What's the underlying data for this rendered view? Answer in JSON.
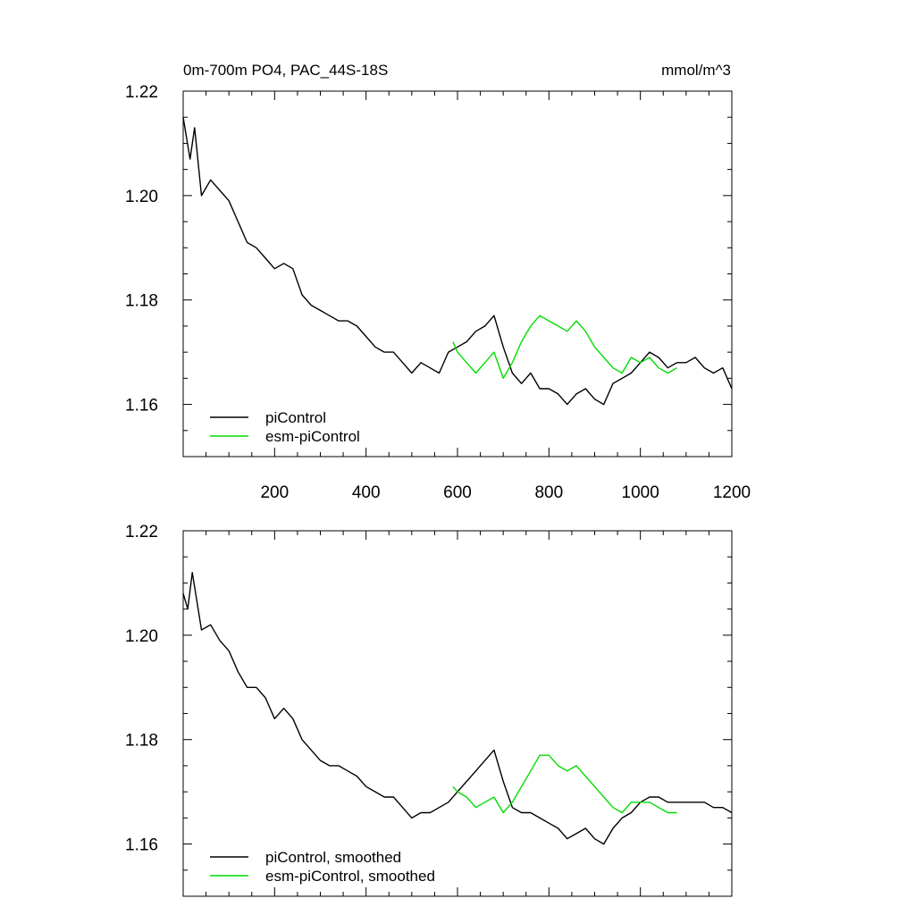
{
  "figure": {
    "title": "0m-700m PO4, PAC_44S-18S",
    "units": "mmol/m^3"
  },
  "chart_data": [
    {
      "type": "line",
      "panel": "top",
      "title": "0m-700m PO4, PAC_44S-18S",
      "units_label": "mmol/m^3",
      "xlabel": "",
      "ylabel": "",
      "xlim": [
        0,
        1200
      ],
      "ylim": [
        1.15,
        1.22
      ],
      "xticks": [
        200,
        400,
        600,
        800,
        1000,
        1200
      ],
      "xtick_labels": [
        "200",
        "400",
        "600",
        "800",
        "1000",
        "1200"
      ],
      "yticks": [
        1.16,
        1.18,
        1.2,
        1.22
      ],
      "ytick_labels": [
        "1.16",
        "1.18",
        "1.20",
        "1.22"
      ],
      "grid": false,
      "legend_position": "bottom-left",
      "series": [
        {
          "name": "piControl",
          "color": "#000000",
          "x": [
            0,
            15,
            25,
            40,
            60,
            80,
            100,
            120,
            140,
            160,
            180,
            200,
            220,
            240,
            260,
            280,
            300,
            320,
            340,
            360,
            380,
            400,
            420,
            440,
            460,
            480,
            500,
            520,
            540,
            560,
            580,
            600,
            620,
            640,
            660,
            680,
            700,
            720,
            740,
            760,
            780,
            800,
            820,
            840,
            860,
            880,
            900,
            920,
            940,
            960,
            980,
            1000,
            1020,
            1040,
            1060,
            1080,
            1100,
            1120,
            1140,
            1160,
            1180,
            1200
          ],
          "y": [
            1.215,
            1.207,
            1.213,
            1.2,
            1.203,
            1.201,
            1.199,
            1.195,
            1.191,
            1.19,
            1.188,
            1.186,
            1.187,
            1.186,
            1.181,
            1.179,
            1.178,
            1.177,
            1.176,
            1.176,
            1.175,
            1.173,
            1.171,
            1.17,
            1.17,
            1.168,
            1.166,
            1.168,
            1.167,
            1.166,
            1.17,
            1.171,
            1.172,
            1.174,
            1.175,
            1.177,
            1.171,
            1.166,
            1.164,
            1.166,
            1.163,
            1.163,
            1.162,
            1.16,
            1.162,
            1.163,
            1.161,
            1.16,
            1.164,
            1.165,
            1.166,
            1.168,
            1.17,
            1.169,
            1.167,
            1.168,
            1.168,
            1.169,
            1.167,
            1.166,
            1.167,
            1.163
          ]
        },
        {
          "name": "esm-piControl",
          "color": "#00dd00",
          "x": [
            590,
            600,
            620,
            640,
            660,
            680,
            700,
            720,
            740,
            760,
            780,
            800,
            820,
            840,
            860,
            880,
            900,
            920,
            940,
            960,
            980,
            1000,
            1020,
            1040,
            1060,
            1080
          ],
          "y": [
            1.172,
            1.17,
            1.168,
            1.166,
            1.168,
            1.17,
            1.165,
            1.168,
            1.172,
            1.175,
            1.177,
            1.176,
            1.175,
            1.174,
            1.176,
            1.174,
            1.171,
            1.169,
            1.167,
            1.166,
            1.169,
            1.168,
            1.169,
            1.167,
            1.166,
            1.167
          ]
        }
      ]
    },
    {
      "type": "line",
      "panel": "bottom",
      "title": "",
      "xlabel": "",
      "ylabel": "",
      "xlim": [
        0,
        1200
      ],
      "ylim": [
        1.15,
        1.22
      ],
      "xticks": [
        200,
        400,
        600,
        800,
        1000,
        1200
      ],
      "xtick_labels": [],
      "yticks": [
        1.16,
        1.18,
        1.2,
        1.22
      ],
      "ytick_labels": [
        "1.16",
        "1.18",
        "1.20",
        "1.22"
      ],
      "grid": false,
      "legend_position": "bottom-left",
      "series": [
        {
          "name": "piControl, smoothed",
          "color": "#000000",
          "x": [
            0,
            10,
            20,
            40,
            60,
            80,
            100,
            120,
            140,
            160,
            180,
            200,
            220,
            240,
            260,
            280,
            300,
            320,
            340,
            360,
            380,
            400,
            420,
            440,
            460,
            480,
            500,
            520,
            540,
            560,
            580,
            600,
            620,
            640,
            660,
            680,
            700,
            720,
            740,
            760,
            780,
            800,
            820,
            840,
            860,
            880,
            900,
            920,
            940,
            960,
            980,
            1000,
            1020,
            1040,
            1060,
            1080,
            1100,
            1120,
            1140,
            1160,
            1180,
            1200
          ],
          "y": [
            1.208,
            1.205,
            1.212,
            1.201,
            1.202,
            1.199,
            1.197,
            1.193,
            1.19,
            1.19,
            1.188,
            1.184,
            1.186,
            1.184,
            1.18,
            1.178,
            1.176,
            1.175,
            1.175,
            1.174,
            1.173,
            1.171,
            1.17,
            1.169,
            1.169,
            1.167,
            1.165,
            1.166,
            1.166,
            1.167,
            1.168,
            1.17,
            1.172,
            1.174,
            1.176,
            1.178,
            1.172,
            1.167,
            1.166,
            1.166,
            1.165,
            1.164,
            1.163,
            1.161,
            1.162,
            1.163,
            1.161,
            1.16,
            1.163,
            1.165,
            1.166,
            1.168,
            1.169,
            1.169,
            1.168,
            1.168,
            1.168,
            1.168,
            1.168,
            1.167,
            1.167,
            1.166
          ]
        },
        {
          "name": "esm-piControl, smoothed",
          "color": "#00dd00",
          "x": [
            590,
            600,
            620,
            640,
            660,
            680,
            700,
            720,
            740,
            760,
            780,
            800,
            820,
            840,
            860,
            880,
            900,
            920,
            940,
            960,
            980,
            1000,
            1020,
            1040,
            1060,
            1080
          ],
          "y": [
            1.171,
            1.17,
            1.169,
            1.167,
            1.168,
            1.169,
            1.166,
            1.168,
            1.171,
            1.174,
            1.177,
            1.177,
            1.175,
            1.174,
            1.175,
            1.173,
            1.171,
            1.169,
            1.167,
            1.166,
            1.168,
            1.168,
            1.168,
            1.167,
            1.166,
            1.166
          ]
        }
      ]
    }
  ]
}
